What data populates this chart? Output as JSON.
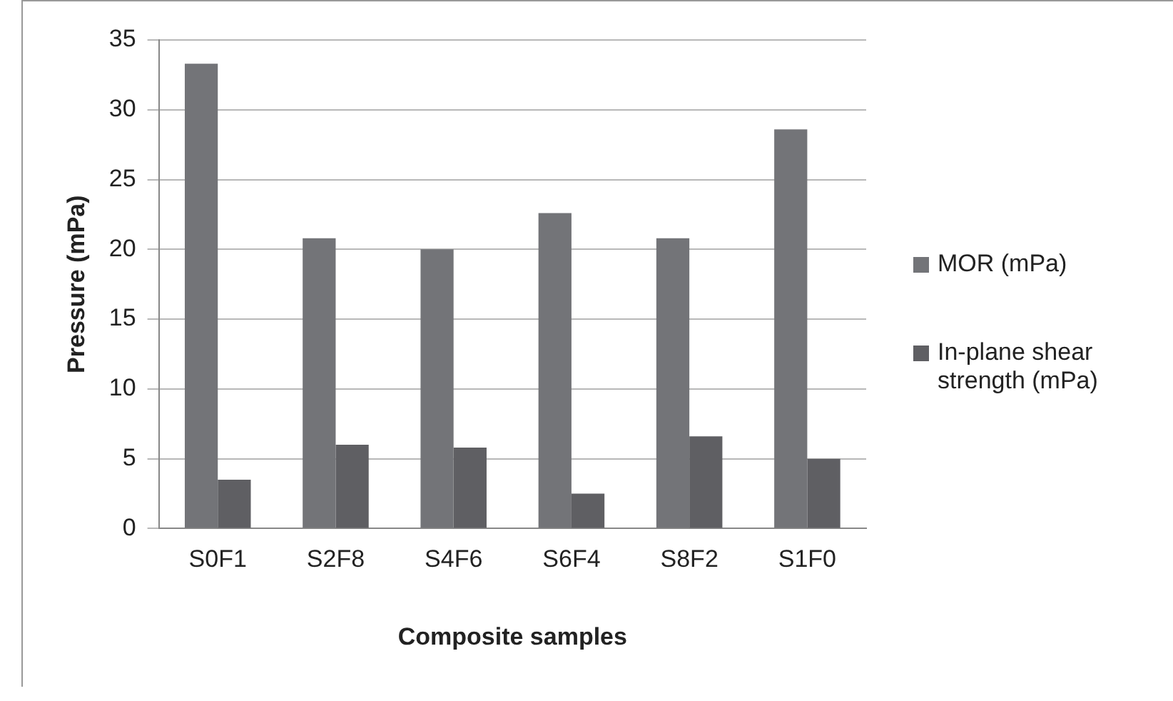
{
  "chart_data": {
    "type": "bar",
    "xlabel": "Composite samples",
    "ylabel": "Pressure (mPa)",
    "categories": [
      "S0F1",
      "S2F8",
      "S4F6",
      "S6F4",
      "S8F2",
      "S1F0"
    ],
    "series": [
      {
        "name": "MOR (mPa)",
        "color": "#737478",
        "values": [
          33.3,
          20.8,
          20.0,
          22.6,
          20.8,
          28.6
        ]
      },
      {
        "name": "In-plane shear strength (mPa)",
        "color": "#5f5f63",
        "values": [
          3.5,
          6.0,
          5.8,
          2.5,
          6.6,
          5.0
        ]
      }
    ],
    "ylim": [
      0,
      35
    ],
    "yticks": [
      0,
      5,
      10,
      15,
      20,
      25,
      30,
      35
    ],
    "grid": "y",
    "legend": "right"
  }
}
